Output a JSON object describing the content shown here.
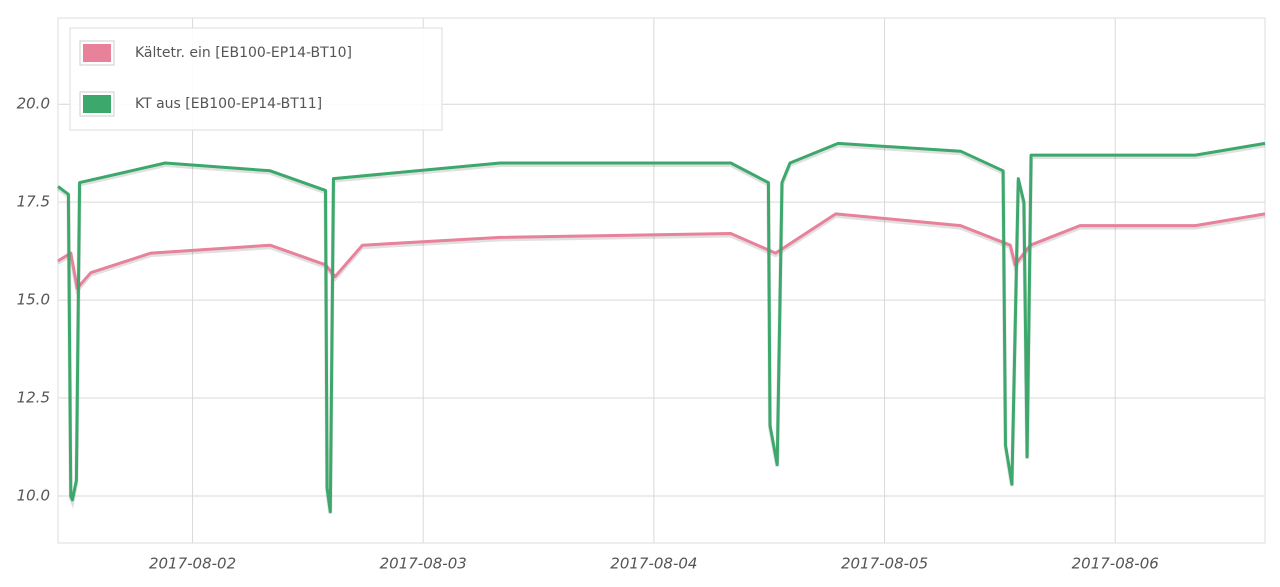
{
  "chart_data": {
    "type": "line",
    "xlim": [
      "2017-08-01 10:00",
      "2017-08-06 15:35"
    ],
    "xticks": [
      "2017-08-02",
      "2017-08-03",
      "2017-08-04",
      "2017-08-05",
      "2017-08-06"
    ],
    "ylim": [
      8.8,
      22.2
    ],
    "yticks": [
      {
        "value": 10,
        "label": "10.0"
      },
      17.5,
      {
        "value": 15,
        "label": "15.0"
      },
      12.5,
      {
        "value": 20,
        "label": "20.0"
      }
    ],
    "grid": true,
    "legend": "top-left",
    "series": [
      {
        "name": "Kältetr. ein [EB100-EP14-BT10]",
        "color": "#e8819a",
        "x": [
          "2017-08-01 10:00",
          "2017-08-01 11:20",
          "2017-08-01 12:00",
          "2017-08-01 13:25",
          "2017-08-01 19:40",
          "2017-08-02 08:05",
          "2017-08-02 13:50",
          "2017-08-02 14:50",
          "2017-08-02 17:40",
          "2017-08-03 08:00",
          "2017-08-04 08:00",
          "2017-08-04 12:40",
          "2017-08-04 18:55",
          "2017-08-05 07:55",
          "2017-08-05 13:05",
          "2017-08-05 13:35",
          "2017-08-05 15:10",
          "2017-08-05 20:20",
          "2017-08-06 08:20",
          "2017-08-06 15:35"
        ],
        "values": [
          16.0,
          16.2,
          15.3,
          15.7,
          16.2,
          16.4,
          15.9,
          15.6,
          16.4,
          16.6,
          16.7,
          16.2,
          17.2,
          16.9,
          16.4,
          15.9,
          16.4,
          16.9,
          16.9,
          17.2
        ]
      },
      {
        "name": "KT aus [EB100-EP14-BT11]",
        "color": "#3ca86c",
        "x": [
          "2017-08-01 10:00",
          "2017-08-01 11:05",
          "2017-08-01 11:20",
          "2017-08-01 11:30",
          "2017-08-01 11:55",
          "2017-08-01 12:15",
          "2017-08-01 21:10",
          "2017-08-02 08:05",
          "2017-08-02 13:50",
          "2017-08-02 14:00",
          "2017-08-02 14:20",
          "2017-08-02 14:40",
          "2017-08-03 08:00",
          "2017-08-04 08:00",
          "2017-08-04 11:55",
          "2017-08-04 12:05",
          "2017-08-04 12:50",
          "2017-08-04 13:20",
          "2017-08-04 14:10",
          "2017-08-04 19:10",
          "2017-08-05 07:55",
          "2017-08-05 12:20",
          "2017-08-05 12:35",
          "2017-08-05 13:15",
          "2017-08-05 13:55",
          "2017-08-05 14:30",
          "2017-08-05 14:50",
          "2017-08-05 15:15",
          "2017-08-06 08:20",
          "2017-08-06 15:35"
        ],
        "values": [
          17.9,
          17.7,
          10.0,
          9.9,
          10.4,
          18.0,
          18.5,
          18.3,
          17.8,
          10.2,
          9.6,
          18.1,
          18.5,
          18.5,
          18.0,
          11.8,
          10.8,
          18.0,
          18.5,
          19.0,
          18.8,
          18.3,
          11.3,
          10.3,
          18.1,
          17.5,
          11.0,
          18.7,
          18.7,
          19.0
        ]
      }
    ]
  }
}
